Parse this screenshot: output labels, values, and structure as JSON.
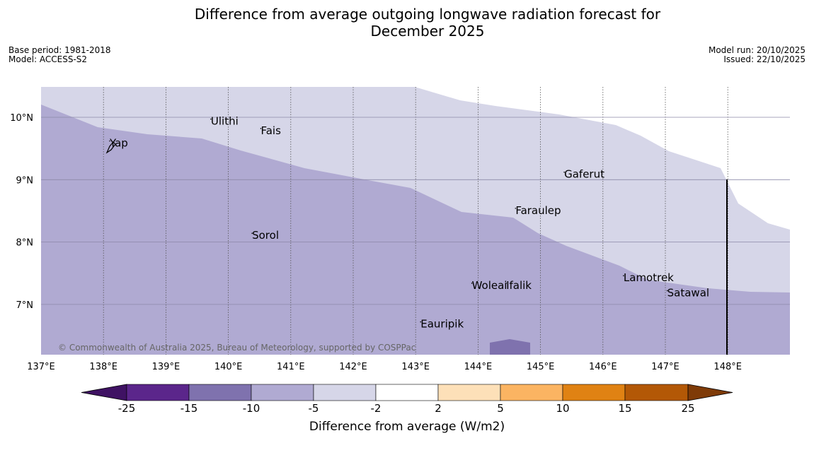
{
  "title": {
    "line1": "Difference from average outgoing longwave radiation forecast for",
    "line2": "December 2025"
  },
  "meta_left": {
    "base_period": "Base period: 1981-2018",
    "model": "Model: ACCESS-S2"
  },
  "meta_right": {
    "model_run": "Model run: 20/10/2025",
    "issued": "Issued: 22/10/2025"
  },
  "copyright": "© Commonwealth of Australia 2025, Bureau of Meteorology, supported by COSPPac",
  "map": {
    "lon_range": [
      137,
      149
    ],
    "lat_range": [
      6.2,
      10.5
    ],
    "lon_ticks": [
      "137°E",
      "138°E",
      "139°E",
      "140°E",
      "141°E",
      "142°E",
      "143°E",
      "144°E",
      "145°E",
      "146°E",
      "147°E",
      "148°E"
    ],
    "lat_ticks": [
      "10°N",
      "9°N",
      "8°N",
      "7°N"
    ],
    "places": [
      {
        "name": "Yap",
        "lon": 138.1,
        "lat": 9.53
      },
      {
        "name": "Ulithi",
        "lon": 139.72,
        "lat": 9.88
      },
      {
        "name": "Fais",
        "lon": 140.52,
        "lat": 9.73
      },
      {
        "name": "Gaferut",
        "lon": 145.38,
        "lat": 9.03
      },
      {
        "name": "Faraulep",
        "lon": 144.6,
        "lat": 8.45
      },
      {
        "name": "Sorol",
        "lon": 140.38,
        "lat": 8.05
      },
      {
        "name": "Woleai",
        "lon": 143.9,
        "lat": 7.25
      },
      {
        "name": "Ifalik",
        "lon": 144.45,
        "lat": 7.25
      },
      {
        "name": "Lamotrek",
        "lon": 146.33,
        "lat": 7.37
      },
      {
        "name": "Satawal",
        "lon": 147.03,
        "lat": 7.13
      },
      {
        "name": "Eauripik",
        "lon": 143.08,
        "lat": 6.63
      }
    ],
    "colors": {
      "minus10_minus5": "#b0aad2",
      "minus5_minus2": "#d6d6e8",
      "minus15_minus10": "#7f72ae"
    }
  },
  "colorbar": {
    "ticks": [
      "-25",
      "-15",
      "-10",
      "-5",
      "-2",
      "2",
      "5",
      "10",
      "15",
      "25"
    ],
    "colors": [
      "#3f1263",
      "#5b268b",
      "#7f72ae",
      "#b0aad2",
      "#d6d6e8",
      "#ffffff",
      "#fde0b8",
      "#fbb462",
      "#e08213",
      "#b35806",
      "#7f3b08"
    ],
    "label": "Difference from average (W/m2)"
  }
}
